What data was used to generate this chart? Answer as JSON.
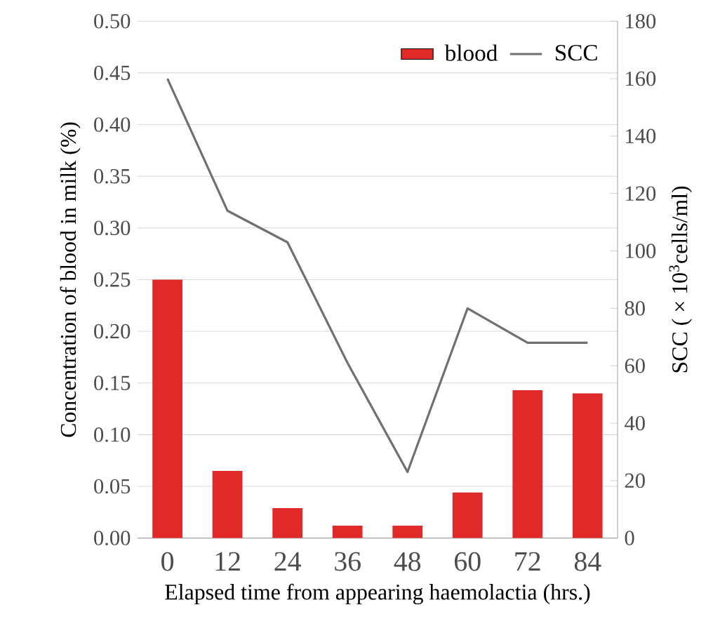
{
  "chart_data": {
    "type": "bar",
    "xlabel": "Elapsed time from appearing haemolactia (hrs.)",
    "ylabel": "Concentration of blood in milk (%)",
    "y2label": "SCC ( × 10$^{3}$cells/ml)",
    "categories": [
      "0",
      "12",
      "24",
      "36",
      "48",
      "60",
      "72",
      "84"
    ],
    "series": [
      {
        "name": "blood",
        "color": "#e02a2a",
        "values": [
          0.25,
          0.065,
          0.029,
          0.012,
          0.012,
          0.044,
          0.143,
          0.14
        ]
      },
      {
        "name": "SCC",
        "type": "line",
        "axis": "y2",
        "color": "#707070",
        "values": [
          160,
          114,
          103,
          61,
          23,
          80,
          68,
          68
        ]
      }
    ],
    "ylim": [
      0,
      0.5
    ],
    "yticks": [
      {
        "value": 0,
        "label": "0.00"
      },
      {
        "value": 0.05,
        "label": "0.05"
      },
      {
        "value": 0.1,
        "label": "0.10"
      },
      {
        "value": 0.15,
        "label": "0.15"
      },
      {
        "value": 0.2,
        "label": "0.20"
      },
      {
        "value": 0.25,
        "label": "0.25"
      },
      {
        "value": 0.3,
        "label": "0.30"
      },
      {
        "value": 0.35,
        "label": "0.35"
      },
      {
        "value": 0.4,
        "label": "0.40"
      },
      {
        "value": 0.45,
        "label": "0.45"
      },
      {
        "value": 0.5,
        "label": "0.50"
      }
    ],
    "y2lim": [
      0,
      180
    ],
    "y2ticks": [
      0,
      20,
      40,
      60,
      80,
      100,
      120,
      140,
      160,
      180
    ],
    "grid": "y",
    "legend": "top right",
    "marker": "none",
    "line_style": "solid"
  }
}
